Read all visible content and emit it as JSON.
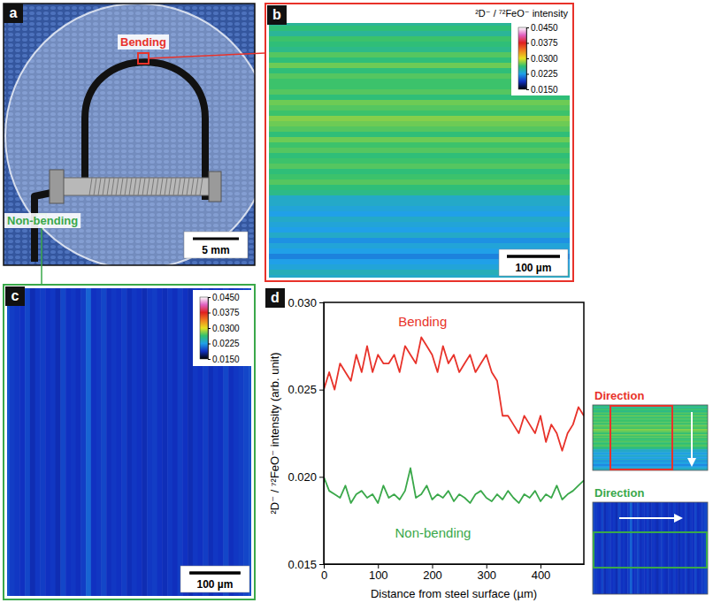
{
  "chart_data": [
    {
      "type": "photo",
      "panel": "a",
      "annotations": [
        "Bending",
        "Non-bending"
      ],
      "colors": [
        "#e8322a",
        "#3aa84a"
      ],
      "scale_bar": "5 mm"
    },
    {
      "type": "heatmap",
      "panel": "b",
      "colorbar_title": "²D⁻ / ⁷²FeO⁻ intensity",
      "colorbar_range": [
        0.015,
        0.045
      ],
      "colorbar_ticks": [
        {
          "value": 0.015,
          "label": "0.0150"
        },
        0.0225,
        {
          "value": 0.03,
          "label": "0.0300"
        },
        0.0375,
        {
          "value": 0.045,
          "label": "0.0450"
        }
      ],
      "scale_bar": {
        "value": 100,
        "label": "100 µm"
      }
    },
    {
      "type": "heatmap",
      "panel": "c",
      "colorbar_range": [
        0.015,
        0.045
      ],
      "colorbar_ticks": [
        {
          "value": 0.015,
          "label": "0.0150"
        },
        0.0225,
        {
          "value": 0.03,
          "label": "0.0300"
        },
        0.0375,
        {
          "value": 0.045,
          "label": "0.0450"
        }
      ],
      "scale_bar": {
        "value": 100,
        "label": "100 µm"
      }
    },
    {
      "type": "line",
      "panel": "d",
      "x_label": "Distance from steel surface (µm)",
      "y_label": "²D⁻ / ⁷²FeO⁻ intensity (arb. unit)",
      "x": [
        0,
        10,
        20,
        30,
        40,
        50,
        60,
        70,
        80,
        90,
        100,
        110,
        120,
        130,
        140,
        150,
        160,
        170,
        180,
        190,
        200,
        210,
        220,
        230,
        240,
        250,
        260,
        270,
        280,
        290,
        300,
        310,
        320,
        330,
        340,
        350,
        360,
        370,
        380,
        390,
        400,
        410,
        420,
        430,
        440,
        450,
        460,
        470,
        480
      ],
      "xlim": [
        0,
        480
      ],
      "xticks": [
        0,
        100,
        200,
        300,
        400
      ],
      "ylim": [
        0.015,
        0.03
      ],
      "yticks": [
        0.015,
        {
          "value": 0.02,
          "label": "0.020"
        },
        0.025,
        {
          "value": 0.03,
          "label": "0.030"
        }
      ],
      "series": [
        {
          "name": "Bending",
          "color": "#e8322a",
          "values": [
            0.025,
            0.026,
            0.025,
            0.0265,
            0.026,
            0.0255,
            0.027,
            0.026,
            0.0275,
            0.026,
            0.027,
            0.0265,
            0.0265,
            0.027,
            0.026,
            0.0275,
            0.027,
            0.0265,
            0.028,
            0.0275,
            0.027,
            0.026,
            0.0275,
            0.0265,
            0.027,
            0.026,
            0.0265,
            0.027,
            0.026,
            0.0265,
            0.027,
            0.026,
            0.0255,
            0.0235,
            0.0235,
            0.023,
            0.0225,
            0.0235,
            0.023,
            0.0225,
            0.0235,
            0.022,
            0.023,
            0.0225,
            0.0215,
            0.0225,
            0.023,
            0.024,
            0.0235
          ]
        },
        {
          "name": "Non-bending",
          "color": "#3aa84a",
          "values": [
            0.02,
            0.0192,
            0.019,
            0.0188,
            0.0195,
            0.0185,
            0.019,
            0.0192,
            0.0188,
            0.019,
            0.0185,
            0.0195,
            0.0188,
            0.019,
            0.0187,
            0.0192,
            0.0205,
            0.0188,
            0.019,
            0.0195,
            0.0187,
            0.019,
            0.0188,
            0.0192,
            0.0186,
            0.019,
            0.0188,
            0.0185,
            0.019,
            0.0192,
            0.0188,
            0.0186,
            0.019,
            0.0187,
            0.0192,
            0.0188,
            0.0185,
            0.019,
            0.0188,
            0.0192,
            0.0186,
            0.019,
            0.0188,
            0.0195,
            0.0187,
            0.019,
            0.0192,
            0.0195,
            0.0198
          ]
        }
      ],
      "direction_labels": [
        "Direction",
        "Direction"
      ]
    }
  ]
}
